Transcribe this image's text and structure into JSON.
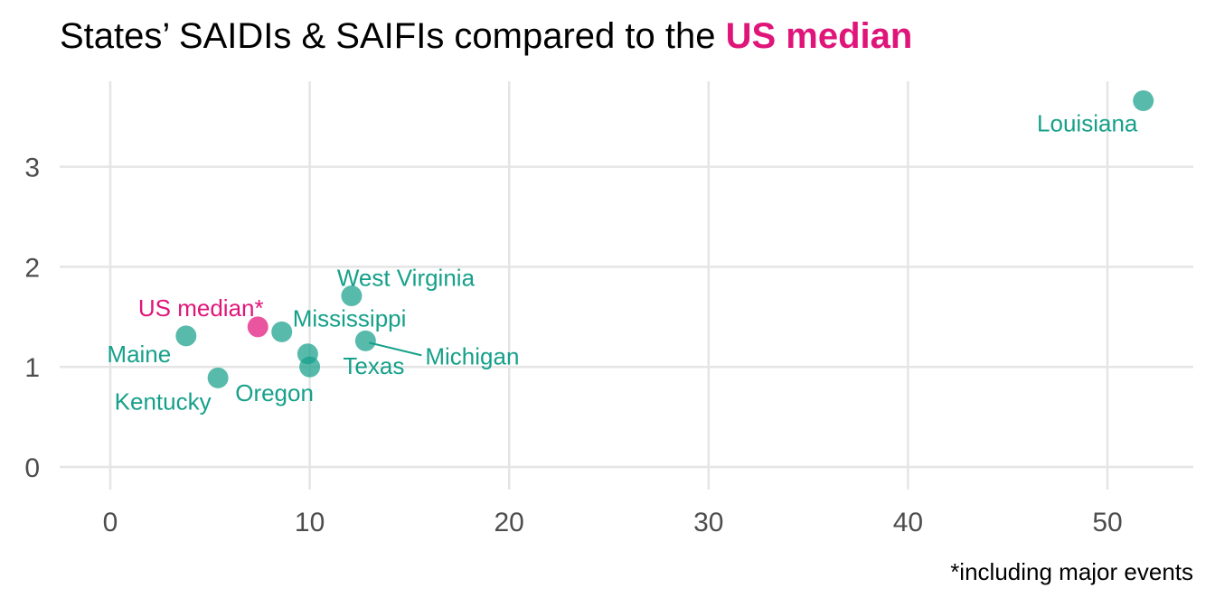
{
  "title": {
    "prefix": "States’ SAIDIs & SAIFIs compared to the ",
    "highlight": "US median"
  },
  "caption": "*including major events",
  "colors": {
    "state": "#16a08a",
    "median": "#e0157a",
    "grid": "#e5e5e5",
    "tick": "#4d4d4d"
  },
  "chart_data": {
    "type": "scatter",
    "xlim": [
      0,
      52
    ],
    "ylim": [
      0,
      3.7
    ],
    "x_ticks": [
      0,
      10,
      20,
      30,
      40,
      50
    ],
    "y_ticks": [
      0,
      1,
      2,
      3
    ],
    "grid": true,
    "xlabel": "",
    "ylabel": "",
    "points": [
      {
        "label": "Louisiana",
        "x": 51.8,
        "y": 3.66,
        "group": "state"
      },
      {
        "label": "West Virginia",
        "x": 12.1,
        "y": 1.71,
        "group": "state"
      },
      {
        "label": "Mississippi",
        "x": 8.6,
        "y": 1.35,
        "group": "state"
      },
      {
        "label": "US median*",
        "x": 7.4,
        "y": 1.4,
        "group": "median"
      },
      {
        "label": "Maine",
        "x": 3.8,
        "y": 1.31,
        "group": "state"
      },
      {
        "label": "Michigan",
        "x": 12.8,
        "y": 1.26,
        "group": "state"
      },
      {
        "label": "Texas",
        "x": 9.9,
        "y": 1.13,
        "group": "state"
      },
      {
        "label": "Oregon",
        "x": 10.0,
        "y": 1.0,
        "group": "state"
      },
      {
        "label": "Kentucky",
        "x": 5.4,
        "y": 0.89,
        "group": "state"
      }
    ]
  }
}
